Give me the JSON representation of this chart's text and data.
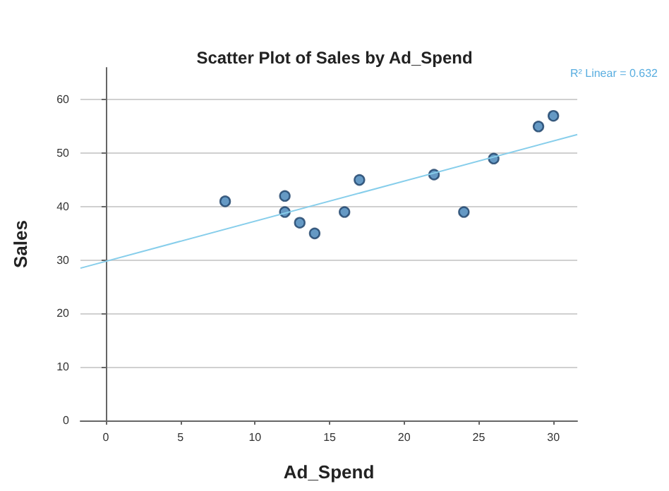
{
  "chart_data": {
    "type": "scatter",
    "title": "Scatter Plot of Sales by Ad_Spend",
    "xlabel": "Ad_Spend",
    "ylabel": "Sales",
    "annotations": [
      "R² Linear = 0.632"
    ],
    "series": [
      {
        "color": "#3f7fb5",
        "marker": "circle",
        "x": [
          8,
          12,
          12,
          13,
          14,
          16,
          17,
          22,
          24,
          26,
          29,
          30
        ],
        "values": [
          41,
          42,
          39,
          37,
          35,
          39,
          45,
          46,
          39,
          49,
          55,
          57
        ]
      },
      {
        "type": "line",
        "marker": "none",
        "color": "#87ceeb",
        "x": [
          -1.7,
          31.6
        ],
        "values": [
          28.5,
          53.5
        ]
      }
    ],
    "xlim": [
      -1.7,
      31.6
    ],
    "xticks": [
      0,
      5,
      10,
      15,
      20,
      25,
      30
    ],
    "ylim": [
      0,
      66
    ],
    "yticks": [
      0,
      10,
      20,
      30,
      40,
      50,
      60
    ],
    "grid": "y"
  }
}
